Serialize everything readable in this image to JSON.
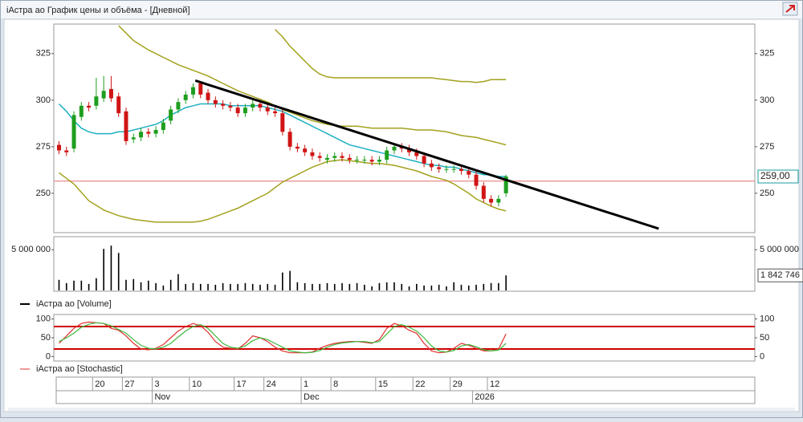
{
  "window": {
    "title": "iАстра ао График цены и объёма - [Дневной]"
  },
  "chart_data": [
    {
      "type": "candlestick",
      "xlim": [
        -0.7,
        93.4
      ],
      "ylim": [
        231,
        340
      ],
      "yticks": [
        250,
        275,
        300,
        325
      ],
      "up_color": "#1e9e1e",
      "down_color": "#d01414",
      "open": [
        276,
        273,
        274,
        291,
        297,
        297,
        301,
        306,
        302,
        294,
        279,
        280,
        283,
        282,
        284,
        289,
        295,
        300,
        303,
        309,
        304,
        300,
        298,
        297,
        296,
        293,
        296,
        298,
        296,
        294,
        293,
        283,
        275,
        274,
        272,
        270,
        268,
        269,
        270,
        269,
        268,
        268,
        268,
        267,
        268,
        273,
        275,
        274,
        272,
        270,
        266,
        264,
        263,
        263,
        263,
        262,
        260,
        254,
        247,
        245,
        250
      ],
      "high": [
        278,
        275,
        294,
        299,
        299,
        312,
        313,
        313,
        304,
        296,
        282,
        285,
        285,
        286,
        290,
        297,
        301,
        305,
        309,
        310,
        306,
        302,
        300,
        299,
        298,
        298,
        300,
        300,
        298,
        296,
        295,
        285,
        277,
        276,
        274,
        272,
        271,
        272,
        272,
        271,
        270,
        270,
        270,
        270,
        275,
        277,
        277,
        276,
        274,
        272,
        268,
        266,
        265,
        265,
        265,
        264,
        262,
        256,
        249,
        249,
        260
      ],
      "low": [
        271,
        270,
        272,
        289,
        294,
        295,
        299,
        299,
        291,
        276,
        277,
        278,
        280,
        280,
        282,
        287,
        293,
        298,
        301,
        301,
        298,
        296,
        295,
        294,
        291,
        291,
        294,
        294,
        292,
        291,
        281,
        273,
        272,
        270,
        268,
        267,
        266,
        267,
        267,
        266,
        266,
        266,
        265,
        265,
        266,
        271,
        272,
        270,
        268,
        264,
        262,
        261,
        261,
        261,
        260,
        258,
        252,
        245,
        243,
        243,
        248
      ],
      "close": [
        273,
        272,
        292,
        297,
        296,
        302,
        305,
        301,
        293,
        278,
        280,
        283,
        282,
        284,
        288,
        295,
        299,
        303,
        307,
        303,
        300,
        298,
        297,
        296,
        293,
        296,
        298,
        296,
        294,
        293,
        283,
        275,
        274,
        272,
        270,
        269,
        269,
        270,
        269,
        268,
        268,
        268,
        267,
        268,
        273,
        275,
        274,
        272,
        270,
        266,
        264,
        263,
        263,
        263,
        262,
        260,
        254,
        247,
        245,
        247,
        259
      ],
      "overlays": [
        {
          "color": "#1fb0c2",
          "width": 1.5,
          "values": [
            298,
            294,
            289,
            285,
            283,
            282,
            282,
            282,
            283,
            283,
            284,
            285,
            286,
            287,
            289,
            292,
            294,
            296,
            297,
            298,
            298,
            298,
            298,
            297,
            297,
            297,
            297,
            297,
            296,
            295,
            294,
            292,
            290,
            288,
            286,
            284,
            282,
            280,
            278,
            276,
            275,
            274,
            273,
            272,
            271,
            270,
            269,
            268,
            267,
            266,
            265,
            265,
            264,
            264,
            263,
            262,
            261,
            260,
            260,
            259,
            259
          ]
        },
        {
          "color": "#a3a21e",
          "width": 1.5,
          "values": [
            null,
            null,
            null,
            null,
            null,
            null,
            null,
            null,
            340,
            336,
            332,
            329.5,
            327,
            325,
            323,
            321,
            319,
            317.5,
            316,
            314.5,
            313,
            311,
            309,
            307,
            305,
            303.5,
            302,
            300.5,
            299,
            297,
            295,
            293.5,
            292,
            290.5,
            289,
            288,
            287,
            286.5,
            286,
            286,
            286,
            285.5,
            285,
            285,
            285,
            285,
            285,
            284.5,
            284,
            284,
            284,
            283.5,
            283,
            282,
            281,
            280.5,
            280,
            279,
            278,
            277,
            276
          ]
        },
        {
          "color": "#a3a21e",
          "width": 1.5,
          "values": [
            null,
            null,
            null,
            null,
            null,
            null,
            null,
            null,
            null,
            null,
            null,
            null,
            null,
            null,
            null,
            null,
            null,
            null,
            null,
            null,
            null,
            null,
            null,
            null,
            null,
            null,
            null,
            null,
            null,
            338,
            334,
            329,
            325,
            321,
            317,
            314,
            312.5,
            312,
            312,
            312,
            312,
            312,
            312,
            312,
            312,
            312,
            312,
            312,
            312,
            312,
            312,
            311.5,
            311,
            310.5,
            310,
            310,
            309.5,
            310,
            311,
            311,
            311
          ]
        },
        {
          "color": "#a3a21e",
          "width": 1.5,
          "values": [
            261,
            258,
            255,
            250.5,
            246,
            243.5,
            241,
            239.5,
            238,
            237,
            236,
            235.5,
            235,
            234.5,
            234.5,
            234.5,
            234.5,
            234.5,
            234.5,
            235,
            236,
            237.5,
            239,
            240.5,
            242,
            244,
            246,
            248,
            250,
            253,
            256,
            258,
            260,
            262,
            264,
            265.5,
            267,
            267.5,
            268,
            267.5,
            267,
            266.5,
            266,
            266,
            265.5,
            265,
            264,
            263,
            262,
            260.5,
            259,
            258,
            257,
            255,
            252.5,
            250,
            247,
            245,
            243,
            241.5,
            240.5
          ]
        }
      ],
      "hline": {
        "value": 256.5,
        "color": "#e07070"
      },
      "trendline": {
        "x": [
          18.3,
          80.5
        ],
        "y": [
          310.5,
          231
        ],
        "color": "#000000"
      },
      "last_price": {
        "value": 259,
        "label": "259,00",
        "color": "#1a9aa0"
      }
    },
    {
      "type": "bar",
      "xlim": [
        -0.7,
        93.4
      ],
      "ylim": [
        0,
        6400000
      ],
      "yticks": [
        {
          "value": 5000000,
          "label": "5 000 000"
        }
      ],
      "series": [
        {
          "name": "iАстра ао [Volume]",
          "color": "#000000",
          "values": [
            1300000,
            900000,
            1200000,
            1200000,
            800000,
            1500000,
            5100000,
            5500000,
            4600000,
            1300000,
            1400000,
            1000000,
            1200000,
            900000,
            600000,
            1300000,
            2000000,
            800000,
            900000,
            800000,
            800000,
            700000,
            900000,
            800000,
            800000,
            900000,
            800000,
            700000,
            800000,
            700000,
            2200000,
            2400000,
            1000000,
            900000,
            800000,
            800000,
            900000,
            800000,
            900000,
            800000,
            900000,
            700000,
            500000,
            900000,
            1000000,
            1000000,
            800000,
            500000,
            800000,
            600000,
            600000,
            700000,
            500000,
            1000000,
            700000,
            600000,
            700000,
            800000,
            900000,
            900000,
            1842746
          ],
          "value_labels": [
            null,
            null,
            null,
            null,
            null,
            null,
            null,
            null,
            null,
            null,
            null,
            null,
            null,
            null,
            null,
            null,
            null,
            null,
            null,
            null,
            null,
            null,
            null,
            null,
            null,
            null,
            null,
            null,
            null,
            null,
            null,
            null,
            null,
            null,
            null,
            null,
            null,
            null,
            null,
            null,
            null,
            null,
            null,
            null,
            null,
            null,
            null,
            null,
            null,
            null,
            null,
            null,
            null,
            null,
            null,
            null,
            null,
            null,
            null,
            null,
            "1 842 746"
          ]
        }
      ]
    },
    {
      "type": "line",
      "xlim": [
        -0.7,
        93.4
      ],
      "ylim": [
        -12,
        112
      ],
      "yticks": [
        0,
        50,
        100
      ],
      "levels": [
        80,
        20
      ],
      "level_color": "#d00000",
      "series": [
        {
          "name": "iАстра ао [Stochastic]",
          "color": "#e03030",
          "values": [
            35,
            55,
            75,
            88,
            92,
            90,
            88,
            75,
            70,
            55,
            35,
            20,
            18,
            22,
            32,
            50,
            68,
            80,
            88,
            82,
            65,
            40,
            25,
            22,
            20,
            35,
            55,
            50,
            40,
            25,
            15,
            10,
            10,
            10,
            12,
            22,
            30,
            35,
            38,
            40,
            40,
            38,
            35,
            45,
            75,
            88,
            82,
            70,
            62,
            35,
            15,
            10,
            12,
            22,
            35,
            30,
            22,
            15,
            15,
            20,
            60
          ]
        },
        {
          "color": "#3cb83c",
          "values": [
            40,
            50,
            62,
            78,
            86,
            90,
            88,
            82,
            72,
            62,
            45,
            30,
            22,
            20,
            25,
            35,
            52,
            68,
            80,
            85,
            75,
            55,
            35,
            25,
            22,
            28,
            42,
            50,
            45,
            35,
            25,
            15,
            12,
            10,
            11,
            16,
            25,
            32,
            36,
            38,
            40,
            40,
            37,
            40,
            60,
            80,
            85,
            78,
            68,
            50,
            28,
            15,
            12,
            16,
            28,
            32,
            26,
            18,
            15,
            17,
            35
          ]
        }
      ]
    }
  ],
  "time_axis": {
    "days": [
      {
        "value": 5,
        "label": "20"
      },
      {
        "value": 9,
        "label": "27"
      },
      {
        "value": 13,
        "label": "3"
      },
      {
        "value": 18,
        "label": "10"
      },
      {
        "value": 24,
        "label": "17"
      },
      {
        "value": 28,
        "label": "24"
      },
      {
        "value": 33,
        "label": "1"
      },
      {
        "value": 37,
        "label": "8"
      },
      {
        "value": 43,
        "label": "15"
      },
      {
        "value": 48,
        "label": "22"
      },
      {
        "value": 53,
        "label": "29"
      },
      {
        "value": 58,
        "label": "12"
      }
    ],
    "months": [
      {
        "value": 13,
        "label": "Nov"
      },
      {
        "value": 33,
        "label": "Dec"
      },
      {
        "value": 56,
        "label": "2026"
      }
    ]
  }
}
